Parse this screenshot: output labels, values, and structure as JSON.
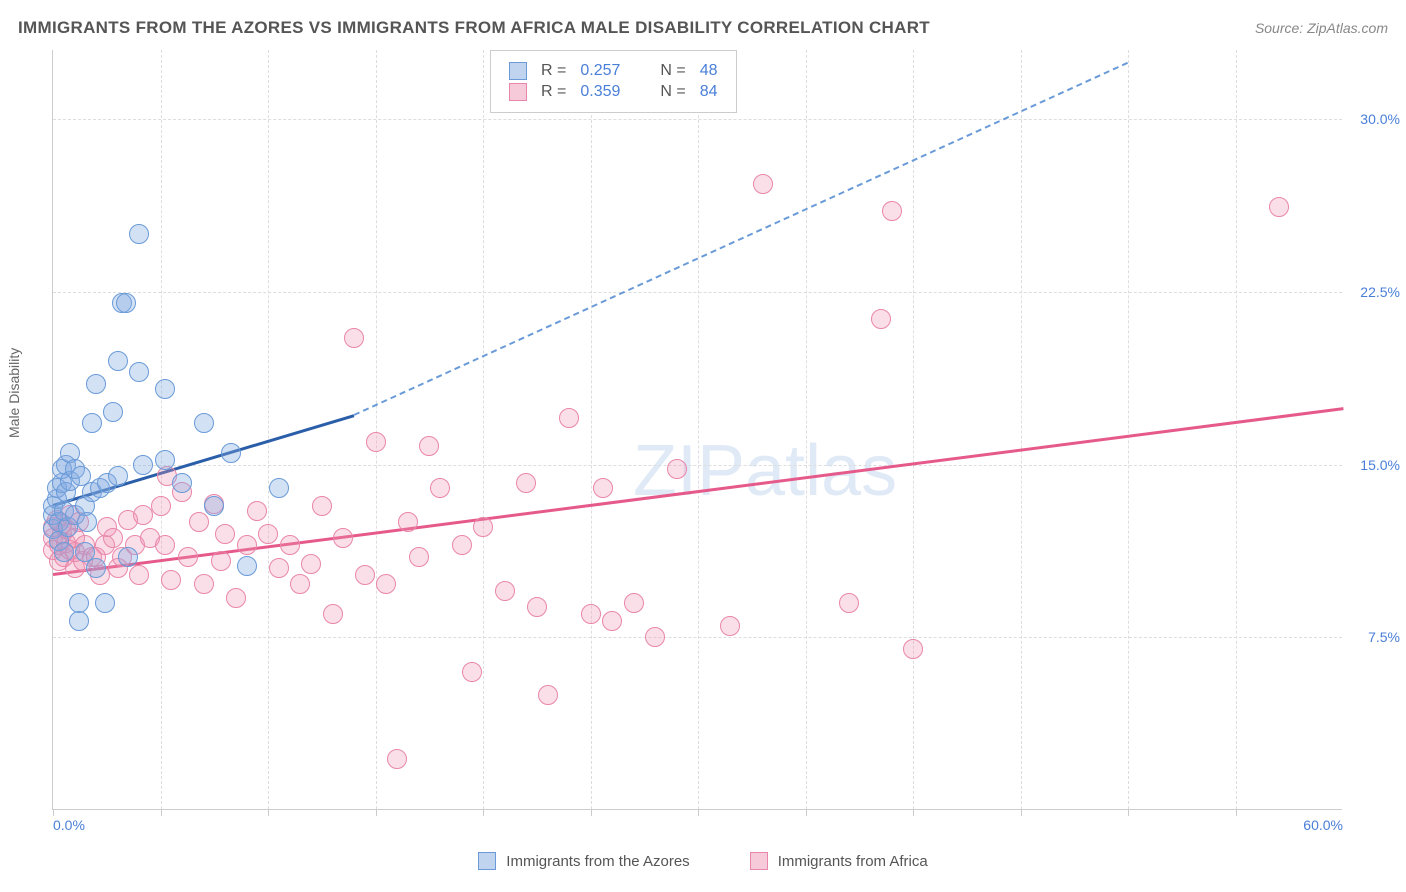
{
  "header": {
    "title": "IMMIGRANTS FROM THE AZORES VS IMMIGRANTS FROM AFRICA MALE DISABILITY CORRELATION CHART",
    "source": "Source: ZipAtlas.com"
  },
  "chart": {
    "type": "scatter",
    "y_axis_label": "Male Disability",
    "watermark": "ZIPatlas",
    "background_color": "#ffffff",
    "grid_color": "#dddddd",
    "axis_color": "#cccccc",
    "text_color": "#555555",
    "value_color": "#4a7fd8",
    "xlim": [
      0,
      60
    ],
    "ylim": [
      0,
      33
    ],
    "y_ticks": [
      {
        "value": 7.5,
        "label": "7.5%"
      },
      {
        "value": 15.0,
        "label": "15.0%"
      },
      {
        "value": 22.5,
        "label": "22.5%"
      },
      {
        "value": 30.0,
        "label": "30.0%"
      }
    ],
    "x_ticks": [
      0,
      5,
      10,
      15,
      20,
      25,
      30,
      35,
      40,
      45,
      50,
      55
    ],
    "x_labels": [
      {
        "value": 0,
        "label": "0.0%"
      },
      {
        "value": 60,
        "label": "60.0%"
      }
    ],
    "marker_radius": 10,
    "marker_opacity": 0.35,
    "line_width": 2.5,
    "title_fontsize": 17,
    "label_fontsize": 14,
    "series": {
      "azores": {
        "label": "Immigrants from the Azores",
        "color_fill": "#82aae1",
        "color_stroke": "#6a9bd8",
        "line_color": "#2b5ea8",
        "R": "0.257",
        "N": "48",
        "trend": {
          "x1": 0,
          "y1": 13.3,
          "x2_solid": 14,
          "y2_solid": 17.2,
          "x2_dash": 50,
          "y2_dash": 32.5
        },
        "points": [
          [
            0,
            12.2
          ],
          [
            0,
            12.8
          ],
          [
            0,
            13.2
          ],
          [
            0.2,
            13.5
          ],
          [
            0.2,
            14
          ],
          [
            0.3,
            11.7
          ],
          [
            0.3,
            12.5
          ],
          [
            0.4,
            14.2
          ],
          [
            0.4,
            14.8
          ],
          [
            0.5,
            11.2
          ],
          [
            0.5,
            13
          ],
          [
            0.6,
            13.8
          ],
          [
            0.6,
            15
          ],
          [
            0.7,
            12.3
          ],
          [
            0.8,
            14.3
          ],
          [
            0.8,
            15.5
          ],
          [
            1,
            12.8
          ],
          [
            1,
            14.8
          ],
          [
            1.2,
            9
          ],
          [
            1.2,
            8.2
          ],
          [
            1.3,
            14.5
          ],
          [
            1.5,
            13.2
          ],
          [
            1.5,
            11.2
          ],
          [
            1.6,
            12.5
          ],
          [
            1.8,
            13.8
          ],
          [
            1.8,
            16.8
          ],
          [
            2,
            10.5
          ],
          [
            2,
            18.5
          ],
          [
            2.2,
            14
          ],
          [
            2.4,
            9
          ],
          [
            2.5,
            14.2
          ],
          [
            2.8,
            17.3
          ],
          [
            3,
            19.5
          ],
          [
            3,
            14.5
          ],
          [
            3.2,
            22
          ],
          [
            3.4,
            22
          ],
          [
            3.5,
            11
          ],
          [
            4,
            19
          ],
          [
            4.2,
            15
          ],
          [
            4,
            25
          ],
          [
            5.2,
            18.3
          ],
          [
            5.2,
            15.2
          ],
          [
            6,
            14.2
          ],
          [
            7,
            16.8
          ],
          [
            7.5,
            13.2
          ],
          [
            8.3,
            15.5
          ],
          [
            9,
            10.6
          ],
          [
            10.5,
            14
          ]
        ]
      },
      "africa": {
        "label": "Immigrants from Africa",
        "color_fill": "#f096b4",
        "color_stroke": "#e986ab",
        "line_color": "#e55a8a",
        "R": "0.359",
        "N": "84",
        "trend": {
          "x1": 0,
          "y1": 10.3,
          "x2": 60,
          "y2": 17.5
        },
        "points": [
          [
            0,
            11.3
          ],
          [
            0,
            11.8
          ],
          [
            0,
            12.3
          ],
          [
            0.2,
            12.6
          ],
          [
            0.3,
            10.8
          ],
          [
            0.3,
            11.5
          ],
          [
            0.4,
            12
          ],
          [
            0.4,
            12.4
          ],
          [
            0.5,
            11
          ],
          [
            0.6,
            11.6
          ],
          [
            0.6,
            12.2
          ],
          [
            0.8,
            11.3
          ],
          [
            0.8,
            12.8
          ],
          [
            1,
            10.5
          ],
          [
            1,
            11.2
          ],
          [
            1,
            11.8
          ],
          [
            1.2,
            12.5
          ],
          [
            1.4,
            10.8
          ],
          [
            1.5,
            11.5
          ],
          [
            1.8,
            11
          ],
          [
            2,
            11
          ],
          [
            2.2,
            10.2
          ],
          [
            2.4,
            11.5
          ],
          [
            2.5,
            12.3
          ],
          [
            2.8,
            11.8
          ],
          [
            3,
            10.5
          ],
          [
            3.2,
            11
          ],
          [
            3.5,
            12.6
          ],
          [
            3.8,
            11.5
          ],
          [
            4,
            10.2
          ],
          [
            4.2,
            12.8
          ],
          [
            4.5,
            11.8
          ],
          [
            5,
            13.2
          ],
          [
            5.2,
            11.5
          ],
          [
            5.3,
            14.5
          ],
          [
            5.5,
            10
          ],
          [
            6,
            13.8
          ],
          [
            6.3,
            11
          ],
          [
            6.8,
            12.5
          ],
          [
            7,
            9.8
          ],
          [
            7.5,
            13.3
          ],
          [
            7.8,
            10.8
          ],
          [
            8,
            12
          ],
          [
            8.5,
            9.2
          ],
          [
            9,
            11.5
          ],
          [
            9.5,
            13
          ],
          [
            10,
            12
          ],
          [
            10.5,
            10.5
          ],
          [
            11,
            11.5
          ],
          [
            11.5,
            9.8
          ],
          [
            12,
            10.7
          ],
          [
            12.5,
            13.2
          ],
          [
            13,
            8.5
          ],
          [
            13.5,
            11.8
          ],
          [
            14,
            20.5
          ],
          [
            14.5,
            10.2
          ],
          [
            15,
            16
          ],
          [
            15.5,
            9.8
          ],
          [
            16,
            2.2
          ],
          [
            16.5,
            12.5
          ],
          [
            17,
            11
          ],
          [
            17.5,
            15.8
          ],
          [
            18,
            14
          ],
          [
            19,
            11.5
          ],
          [
            19.5,
            6
          ],
          [
            20,
            12.3
          ],
          [
            21,
            9.5
          ],
          [
            22,
            14.2
          ],
          [
            22.5,
            8.8
          ],
          [
            23,
            5
          ],
          [
            24,
            17
          ],
          [
            25,
            8.5
          ],
          [
            25.6,
            14
          ],
          [
            26,
            8.2
          ],
          [
            27,
            9
          ],
          [
            28,
            7.5
          ],
          [
            29,
            14.8
          ],
          [
            31.5,
            8
          ],
          [
            33,
            27.2
          ],
          [
            37,
            9
          ],
          [
            38.5,
            21.3
          ],
          [
            39,
            26
          ],
          [
            40,
            7
          ],
          [
            57,
            26.2
          ]
        ]
      }
    },
    "stats_box_labels": {
      "R": "R =",
      "N": "N ="
    },
    "bottom_legend_labels": {
      "azores": "Immigrants from the Azores",
      "africa": "Immigrants from Africa"
    }
  }
}
